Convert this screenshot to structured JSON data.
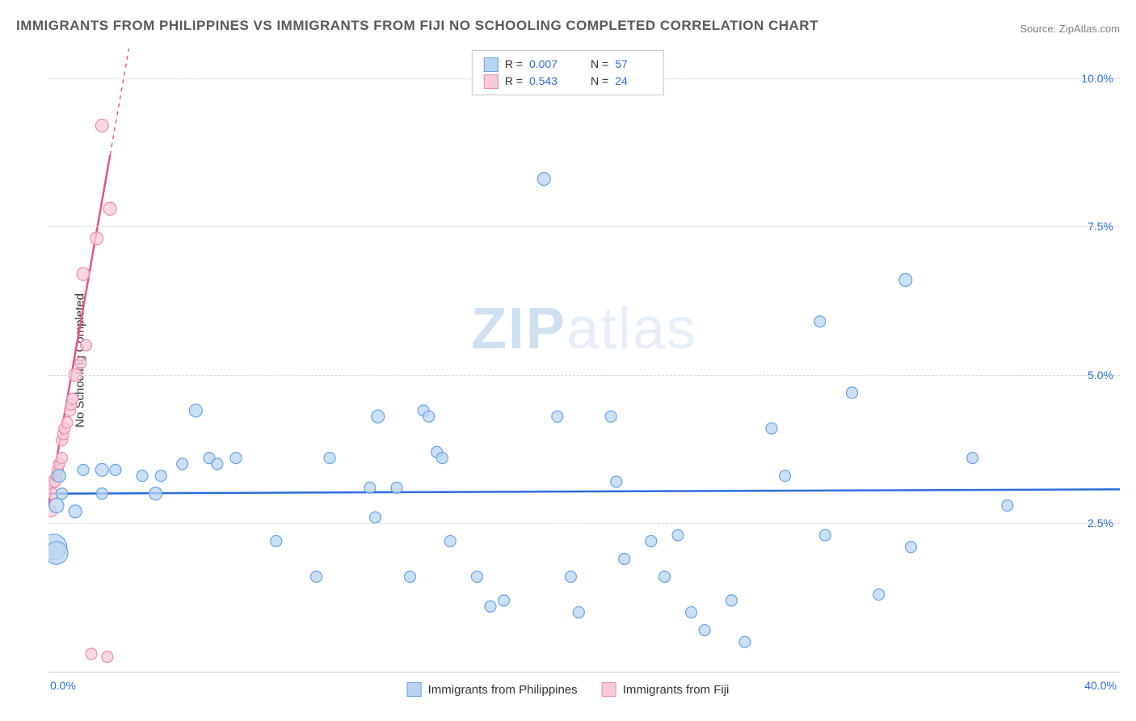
{
  "title": "IMMIGRANTS FROM PHILIPPINES VS IMMIGRANTS FROM FIJI NO SCHOOLING COMPLETED CORRELATION CHART",
  "source": "Source: ZipAtlas.com",
  "ylabel": "No Schooling Completed",
  "watermark_a": "ZIP",
  "watermark_b": "atlas",
  "stats": {
    "series": [
      {
        "r_label": "R =",
        "r": "0.007",
        "n_label": "N =",
        "n": "57",
        "color": "blue"
      },
      {
        "r_label": "R =",
        "r": "0.543",
        "n_label": "N =",
        "n": "24",
        "color": "pink"
      }
    ]
  },
  "legend": {
    "items": [
      {
        "label": "Immigrants from Philippines",
        "color": "blue"
      },
      {
        "label": "Immigrants from Fiji",
        "color": "pink"
      }
    ]
  },
  "chart": {
    "type": "scatter",
    "xlim": [
      0,
      40
    ],
    "ylim": [
      0,
      10.5
    ],
    "ytick_values": [
      2.5,
      5.0,
      7.5,
      10.0
    ],
    "ytick_labels": [
      "2.5%",
      "5.0%",
      "7.5%",
      "10.0%"
    ],
    "xtick_left": "0.0%",
    "xtick_right": "40.0%",
    "grid_color": "#d9d9d9",
    "background_color": "#ffffff",
    "series_blue": {
      "color_fill": "#b9d4f1",
      "color_stroke": "#6aa4e4",
      "opacity": 0.75,
      "trend": {
        "slope": 0.0018,
        "intercept": 3.0,
        "color": "#2d6cdf",
        "width": 2.5
      },
      "points": [
        {
          "x": 0.3,
          "y": 2.8,
          "r": 9
        },
        {
          "x": 0.2,
          "y": 2.1,
          "r": 16
        },
        {
          "x": 0.3,
          "y": 2.0,
          "r": 14
        },
        {
          "x": 0.4,
          "y": 3.3,
          "r": 8
        },
        {
          "x": 0.5,
          "y": 3.0,
          "r": 7
        },
        {
          "x": 1.0,
          "y": 2.7,
          "r": 8
        },
        {
          "x": 1.3,
          "y": 3.4,
          "r": 7
        },
        {
          "x": 2.0,
          "y": 3.0,
          "r": 7
        },
        {
          "x": 2.0,
          "y": 3.4,
          "r": 8
        },
        {
          "x": 2.5,
          "y": 3.4,
          "r": 7
        },
        {
          "x": 3.5,
          "y": 3.3,
          "r": 7
        },
        {
          "x": 4.0,
          "y": 3.0,
          "r": 8
        },
        {
          "x": 4.2,
          "y": 3.3,
          "r": 7
        },
        {
          "x": 5.0,
          "y": 3.5,
          "r": 7
        },
        {
          "x": 5.5,
          "y": 4.4,
          "r": 8
        },
        {
          "x": 6.0,
          "y": 3.6,
          "r": 7
        },
        {
          "x": 6.3,
          "y": 3.5,
          "r": 7
        },
        {
          "x": 7.0,
          "y": 3.6,
          "r": 7
        },
        {
          "x": 8.5,
          "y": 2.2,
          "r": 7
        },
        {
          "x": 10.0,
          "y": 1.6,
          "r": 7
        },
        {
          "x": 10.5,
          "y": 3.6,
          "r": 7
        },
        {
          "x": 12.0,
          "y": 3.1,
          "r": 7
        },
        {
          "x": 12.2,
          "y": 2.6,
          "r": 7
        },
        {
          "x": 12.3,
          "y": 4.3,
          "r": 8
        },
        {
          "x": 13.0,
          "y": 3.1,
          "r": 7
        },
        {
          "x": 13.5,
          "y": 1.6,
          "r": 7
        },
        {
          "x": 14.0,
          "y": 4.4,
          "r": 7
        },
        {
          "x": 14.2,
          "y": 4.3,
          "r": 7
        },
        {
          "x": 14.5,
          "y": 3.7,
          "r": 7
        },
        {
          "x": 14.7,
          "y": 3.6,
          "r": 7
        },
        {
          "x": 15.0,
          "y": 2.2,
          "r": 7
        },
        {
          "x": 16.0,
          "y": 1.6,
          "r": 7
        },
        {
          "x": 16.5,
          "y": 1.1,
          "r": 7
        },
        {
          "x": 17.0,
          "y": 1.2,
          "r": 7
        },
        {
          "x": 18.5,
          "y": 8.3,
          "r": 8
        },
        {
          "x": 19.0,
          "y": 4.3,
          "r": 7
        },
        {
          "x": 19.5,
          "y": 1.6,
          "r": 7
        },
        {
          "x": 19.8,
          "y": 1.0,
          "r": 7
        },
        {
          "x": 21.0,
          "y": 4.3,
          "r": 7
        },
        {
          "x": 21.2,
          "y": 3.2,
          "r": 7
        },
        {
          "x": 21.5,
          "y": 1.9,
          "r": 7
        },
        {
          "x": 22.5,
          "y": 2.2,
          "r": 7
        },
        {
          "x": 23.0,
          "y": 1.6,
          "r": 7
        },
        {
          "x": 23.5,
          "y": 2.3,
          "r": 7
        },
        {
          "x": 24.0,
          "y": 1.0,
          "r": 7
        },
        {
          "x": 24.5,
          "y": 0.7,
          "r": 7
        },
        {
          "x": 25.5,
          "y": 1.2,
          "r": 7
        },
        {
          "x": 26.0,
          "y": 0.5,
          "r": 7
        },
        {
          "x": 27.0,
          "y": 4.1,
          "r": 7
        },
        {
          "x": 27.5,
          "y": 3.3,
          "r": 7
        },
        {
          "x": 28.8,
          "y": 5.9,
          "r": 7
        },
        {
          "x": 29.0,
          "y": 2.3,
          "r": 7
        },
        {
          "x": 30.0,
          "y": 4.7,
          "r": 7
        },
        {
          "x": 31.0,
          "y": 1.3,
          "r": 7
        },
        {
          "x": 32.0,
          "y": 6.6,
          "r": 8
        },
        {
          "x": 32.2,
          "y": 2.1,
          "r": 7
        },
        {
          "x": 34.5,
          "y": 3.6,
          "r": 7
        },
        {
          "x": 35.8,
          "y": 2.8,
          "r": 7
        }
      ]
    },
    "series_pink": {
      "color_fill": "#f8c9d6",
      "color_stroke": "#ea8fae",
      "opacity": 0.75,
      "trend": {
        "x1": 0,
        "y1": 2.8,
        "x2": 3.0,
        "y2": 10.5,
        "dash_from_x": 2.3,
        "color": "#e75480",
        "width": 2.5
      },
      "points": [
        {
          "x": 0.1,
          "y": 2.7,
          "r": 7
        },
        {
          "x": 0.15,
          "y": 3.0,
          "r": 7
        },
        {
          "x": 0.2,
          "y": 3.2,
          "r": 8
        },
        {
          "x": 0.25,
          "y": 3.2,
          "r": 7
        },
        {
          "x": 0.3,
          "y": 3.3,
          "r": 7
        },
        {
          "x": 0.35,
          "y": 3.4,
          "r": 7
        },
        {
          "x": 0.4,
          "y": 3.5,
          "r": 7
        },
        {
          "x": 0.5,
          "y": 3.6,
          "r": 7
        },
        {
          "x": 0.5,
          "y": 3.9,
          "r": 7
        },
        {
          "x": 0.55,
          "y": 4.0,
          "r": 7
        },
        {
          "x": 0.6,
          "y": 4.1,
          "r": 7
        },
        {
          "x": 0.7,
          "y": 4.2,
          "r": 7
        },
        {
          "x": 0.8,
          "y": 4.4,
          "r": 7
        },
        {
          "x": 0.85,
          "y": 4.5,
          "r": 7
        },
        {
          "x": 0.9,
          "y": 4.6,
          "r": 7
        },
        {
          "x": 1.0,
          "y": 5.0,
          "r": 8
        },
        {
          "x": 1.2,
          "y": 5.2,
          "r": 7
        },
        {
          "x": 1.4,
          "y": 5.5,
          "r": 7
        },
        {
          "x": 1.3,
          "y": 6.7,
          "r": 8
        },
        {
          "x": 1.8,
          "y": 7.3,
          "r": 8
        },
        {
          "x": 2.3,
          "y": 7.8,
          "r": 8
        },
        {
          "x": 2.0,
          "y": 9.2,
          "r": 8
        },
        {
          "x": 1.6,
          "y": 0.3,
          "r": 7
        },
        {
          "x": 2.2,
          "y": 0.25,
          "r": 7
        }
      ]
    }
  }
}
